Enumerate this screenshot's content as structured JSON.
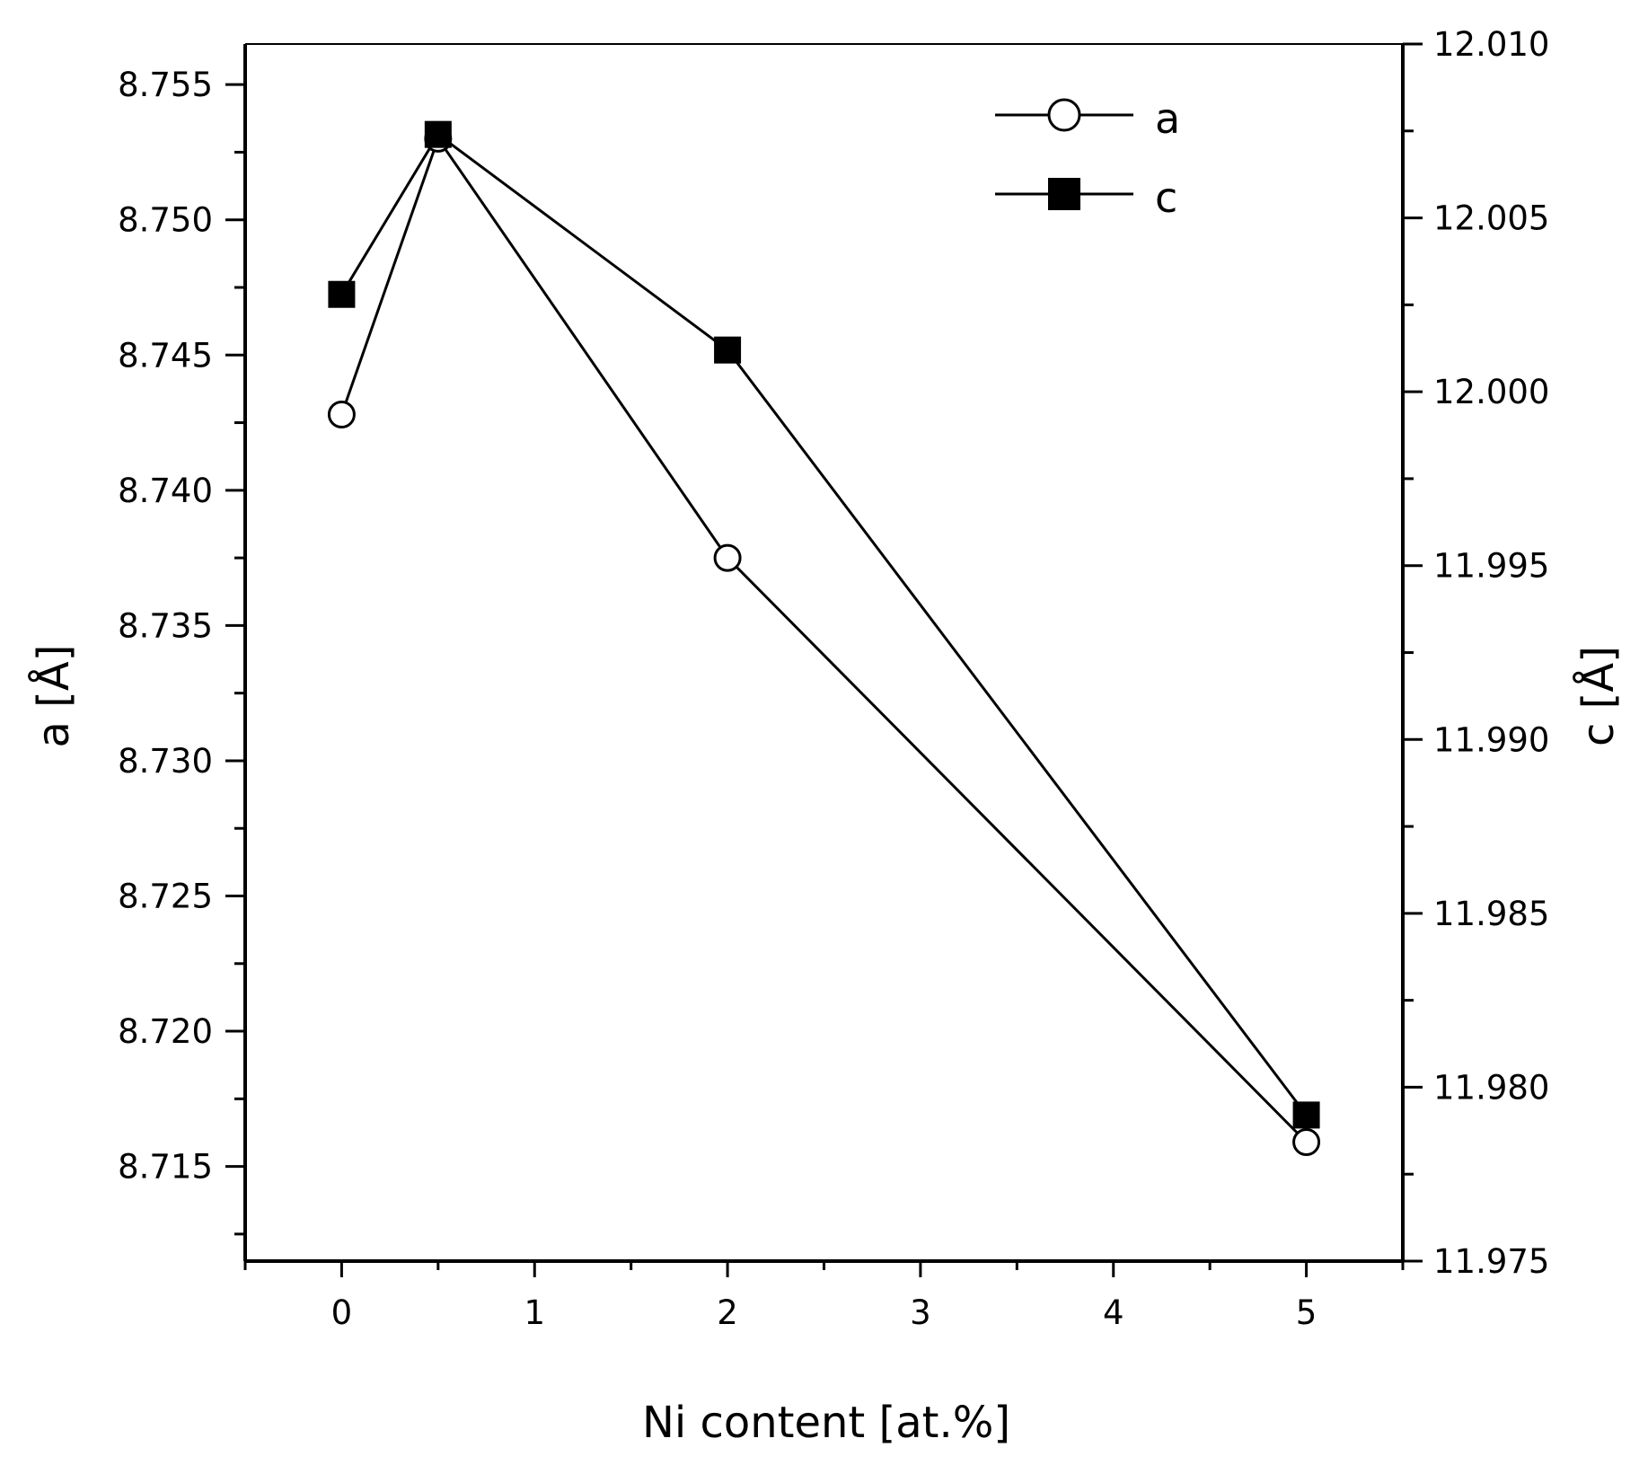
{
  "chart_data": {
    "type": "line",
    "xlabel": "Ni content [at.%]",
    "ylabel_left": "a [Å]",
    "ylabel_right": "c  [Å]",
    "xlim": [
      -0.5,
      5.5
    ],
    "ylim_left": [
      8.7115,
      8.7565
    ],
    "ylim_right": [
      11.975,
      12.01
    ],
    "x_ticks": [
      "0",
      "1",
      "2",
      "3",
      "4",
      "5"
    ],
    "y_left_ticks": [
      "8.715",
      "8.720",
      "8.725",
      "8.730",
      "8.735",
      "8.740",
      "8.745",
      "8.750",
      "8.755"
    ],
    "y_right_ticks": [
      "11.975",
      "11.980",
      "11.985",
      "11.990",
      "11.995",
      "12.000",
      "12.005",
      "12.010"
    ],
    "legend_position": "top-right",
    "grid": false,
    "series": [
      {
        "name": "a",
        "axis": "left",
        "marker": "open-circle",
        "color": "#000000",
        "x": [
          0,
          0.5,
          2,
          5
        ],
        "y": [
          8.7428,
          8.753,
          8.7375,
          8.7159
        ]
      },
      {
        "name": "c",
        "axis": "right",
        "marker": "filled-square",
        "color": "#000000",
        "x": [
          0,
          0.5,
          2,
          5
        ],
        "y": [
          12.0028,
          12.0074,
          12.0012,
          11.9792
        ]
      }
    ]
  }
}
